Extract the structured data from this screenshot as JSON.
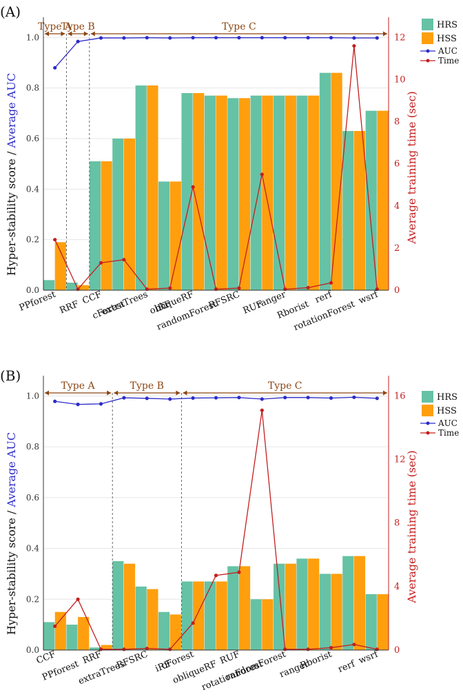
{
  "legend": {
    "hrs": "HRS",
    "hss": "HSS",
    "auc": "AUC",
    "time": "Time"
  },
  "colors": {
    "hrs": "#66c2a5",
    "hss": "#ff9f0e",
    "auc": "#2b2bc8",
    "time": "#c41e1e",
    "type": "#8b4513",
    "grid": "#e6e6e6"
  },
  "chart_data": [
    {
      "type": "bar",
      "panel_label": "(A)",
      "ylabel_left_part1": "Hyper-stability score / ",
      "ylabel_left_part2": "Average AUC",
      "ylabel_right": "Average training time (sec)",
      "ylim": [
        0,
        1.08
      ],
      "y_ticks": [
        "0.0",
        "0.2",
        "0.4",
        "0.6",
        "0.8",
        "1.0"
      ],
      "y2lim": [
        0,
        12.96
      ],
      "y2_ticks": [
        "0",
        "2",
        "4",
        "6",
        "8",
        "10",
        "12"
      ],
      "categories": [
        "PPforest",
        "RRF",
        "CCF",
        "cForest",
        "extraTrees",
        "iRF",
        "obliqueRF",
        "randomForest",
        "RFSRC",
        "RUF",
        "ranger",
        "Rborist",
        "rerf",
        "rotationForest",
        "wsrf"
      ],
      "groups": [
        {
          "label": "Type A",
          "start": 0,
          "end": 1
        },
        {
          "label": "Type B",
          "start": 1,
          "end": 2
        },
        {
          "label": "Type C",
          "start": 2,
          "end": 15
        }
      ],
      "series": [
        {
          "name": "HRS",
          "values": [
            0.04,
            0.03,
            0.51,
            0.6,
            0.81,
            0.43,
            0.78,
            0.77,
            0.76,
            0.77,
            0.77,
            0.77,
            0.86,
            0.63,
            0.71
          ]
        },
        {
          "name": "HSS",
          "values": [
            0.19,
            0.02,
            0.51,
            0.6,
            0.81,
            0.43,
            0.78,
            0.77,
            0.76,
            0.77,
            0.77,
            0.77,
            0.86,
            0.63,
            0.71
          ]
        },
        {
          "name": "AUC",
          "values": [
            0.88,
            0.984,
            0.998,
            0.998,
            0.999,
            0.998,
            0.999,
            0.999,
            0.999,
            0.999,
            0.999,
            0.999,
            0.999,
            0.998,
            0.998
          ]
        },
        {
          "name": "Time",
          "values": [
            2.4,
            0.05,
            1.3,
            1.45,
            0.05,
            0.1,
            4.9,
            0.05,
            0.1,
            5.5,
            0.05,
            0.12,
            0.35,
            11.6,
            0.05
          ]
        }
      ]
    },
    {
      "type": "bar",
      "panel_label": "(B)",
      "ylabel_left_part1": "Hyper-stability score / ",
      "ylabel_left_part2": "Average AUC",
      "ylabel_right": "Average training time (sec)",
      "ylim": [
        0,
        1.08
      ],
      "y_ticks": [
        "0.0",
        "0.2",
        "0.4",
        "0.6",
        "0.8",
        "1.0"
      ],
      "y2lim": [
        0,
        17.28
      ],
      "y2_ticks": [
        "0",
        "4",
        "8",
        "12",
        "16"
      ],
      "categories": [
        "CCF",
        "PPforest",
        "RRF",
        "extraTrees",
        "RFSRC",
        "iRF",
        "cForest",
        "obliqueRF",
        "RUF",
        "rotationForest",
        "randomForest",
        "ranger",
        "Rborist",
        "rerf",
        "wsrf"
      ],
      "groups": [
        {
          "label": "Type A",
          "start": 0,
          "end": 3
        },
        {
          "label": "Type B",
          "start": 3,
          "end": 6
        },
        {
          "label": "Type C",
          "start": 6,
          "end": 15
        }
      ],
      "series": [
        {
          "name": "HRS",
          "values": [
            0.11,
            0.1,
            0.01,
            0.35,
            0.25,
            0.15,
            0.27,
            0.27,
            0.33,
            0.2,
            0.34,
            0.36,
            0.3,
            0.37,
            0.22
          ]
        },
        {
          "name": "HSS",
          "values": [
            0.15,
            0.13,
            0.02,
            0.34,
            0.24,
            0.14,
            0.27,
            0.27,
            0.33,
            0.2,
            0.34,
            0.36,
            0.3,
            0.37,
            0.22
          ]
        },
        {
          "name": "AUC",
          "values": [
            0.979,
            0.967,
            0.969,
            0.993,
            0.991,
            0.988,
            0.992,
            0.993,
            0.994,
            0.988,
            0.994,
            0.994,
            0.992,
            0.995,
            0.991
          ]
        },
        {
          "name": "Time",
          "values": [
            1.5,
            3.2,
            0.05,
            0.05,
            0.1,
            0.05,
            1.7,
            4.7,
            4.9,
            15.1,
            0.05,
            0.05,
            0.15,
            0.35,
            0.05
          ]
        }
      ]
    }
  ]
}
